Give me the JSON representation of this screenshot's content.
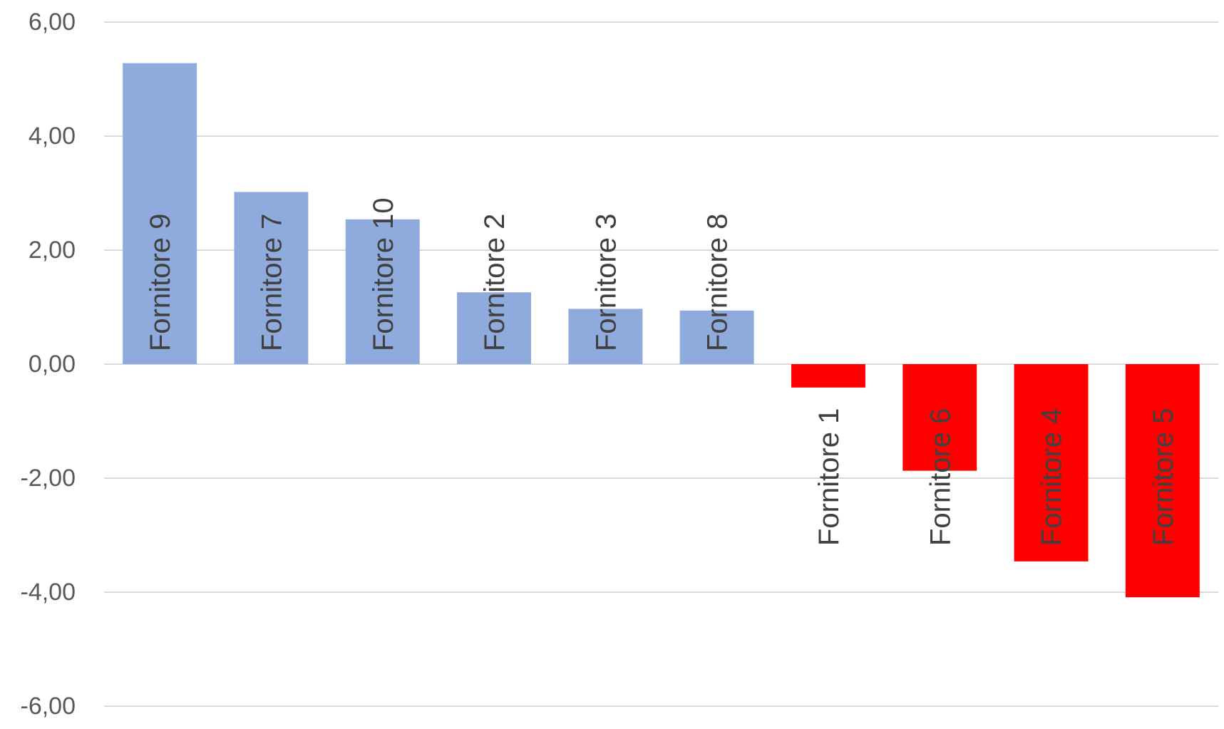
{
  "chart_data": {
    "type": "bar",
    "categories": [
      "Fornitore 9",
      "Fornitore 7",
      "Fornitore 10",
      "Fornitore 2",
      "Fornitore 3",
      "Fornitore 8",
      "Fornitore 1",
      "Fornitore 6",
      "Fornitore 4",
      "Fornitore 5"
    ],
    "values": [
      5.28,
      3.02,
      2.54,
      1.26,
      0.97,
      0.94,
      -0.41,
      -1.87,
      -3.46,
      -4.09
    ],
    "ylim": [
      -6,
      6
    ],
    "yticks": [
      6,
      4,
      2,
      0,
      -2,
      -4,
      -6
    ],
    "ytick_labels": [
      "6,00",
      "4,00",
      "2,00",
      "0,00",
      "-2,00",
      "-4,00",
      "-6,00"
    ],
    "grid": true,
    "colors": {
      "positive": "#8faadc",
      "negative": "#ff0000"
    }
  }
}
